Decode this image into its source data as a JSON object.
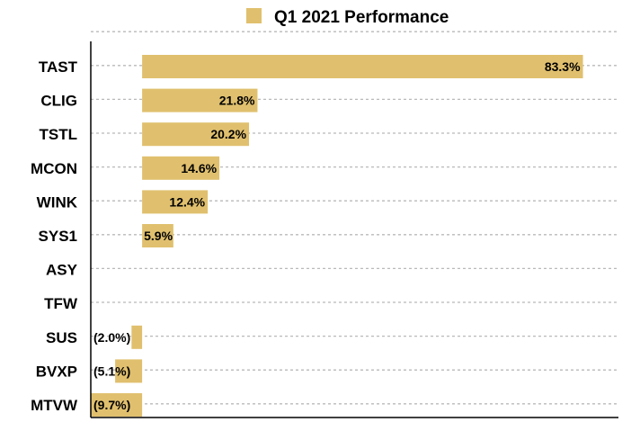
{
  "chart_data": {
    "type": "bar",
    "orientation": "horizontal",
    "title": "",
    "xlabel": "",
    "ylabel": "",
    "categories": [
      "TAST",
      "CLIG",
      "TSTL",
      "MCON",
      "WINK",
      "SYS1",
      "ASY",
      "TFW",
      "SUS",
      "BVXP",
      "MTVW"
    ],
    "series": [
      {
        "name": "Q1 2021 Performance",
        "values": [
          83.3,
          21.8,
          20.2,
          14.6,
          12.4,
          5.9,
          0,
          0,
          -2.0,
          -5.1,
          -9.7
        ],
        "labels": [
          "83.3%",
          "21.8%",
          "20.2%",
          "14.6%",
          "12.4%",
          "5.9%",
          "",
          "",
          "(2.0%)",
          "(5.1%)",
          "(9.7%)"
        ]
      }
    ],
    "xlim": [
      -9.7,
      90
    ],
    "grid": true,
    "legend": "top",
    "colors": {
      "bar": "#e0c06e"
    }
  }
}
